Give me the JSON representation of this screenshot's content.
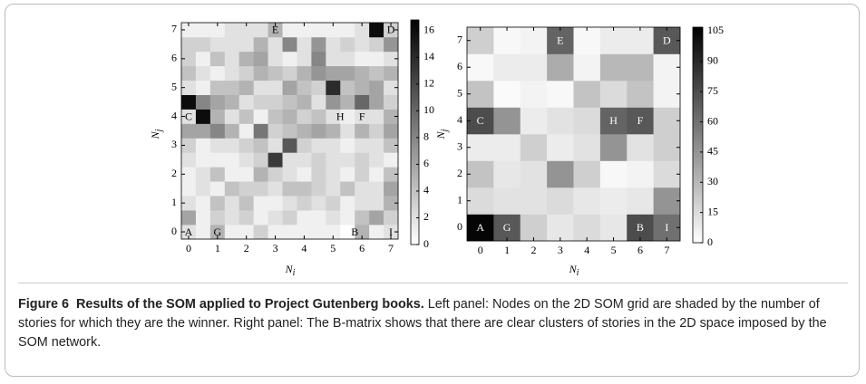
{
  "chart_data": [
    {
      "type": "heatmap",
      "x": [
        0,
        0.5,
        1,
        1.5,
        2,
        2.5,
        3,
        3.5,
        4,
        4.5,
        5,
        5.5,
        6,
        6.5,
        7
      ],
      "y": [
        0,
        0.5,
        1,
        1.5,
        2,
        2.5,
        3,
        3.5,
        4,
        4.5,
        5,
        5.5,
        6,
        6.5,
        7
      ],
      "z": [
        [
          2,
          1,
          5,
          1,
          1,
          3,
          1,
          1,
          1,
          1,
          1,
          0,
          5,
          1,
          2
        ],
        [
          6,
          1,
          3,
          2,
          3,
          1,
          2,
          3,
          1,
          1,
          2,
          1,
          4,
          6,
          3
        ],
        [
          2,
          1,
          4,
          2,
          4,
          1,
          1,
          2,
          3,
          2,
          3,
          1,
          2,
          2,
          5
        ],
        [
          1,
          2,
          1,
          4,
          3,
          3,
          2,
          4,
          4,
          3,
          2,
          4,
          2,
          2,
          6
        ],
        [
          1,
          2,
          4,
          1,
          1,
          5,
          3,
          2,
          1,
          3,
          2,
          1,
          3,
          1,
          4
        ],
        [
          2,
          1,
          1,
          1,
          2,
          3,
          13,
          2,
          2,
          3,
          2,
          2,
          3,
          2,
          1
        ],
        [
          3,
          1,
          2,
          2,
          3,
          4,
          2,
          11,
          3,
          2,
          2,
          1,
          2,
          2,
          4
        ],
        [
          6,
          6,
          8,
          5,
          1,
          9,
          3,
          4,
          5,
          6,
          5,
          2,
          5,
          3,
          6
        ],
        [
          2,
          16,
          5,
          2,
          4,
          1,
          4,
          5,
          3,
          4,
          2,
          1,
          2,
          2,
          5
        ],
        [
          16,
          8,
          6,
          5,
          2,
          3,
          3,
          4,
          5,
          2,
          7,
          5,
          10,
          6,
          3
        ],
        [
          2,
          1,
          4,
          4,
          5,
          2,
          2,
          6,
          4,
          3,
          14,
          4,
          5,
          6,
          2
        ],
        [
          4,
          2,
          1,
          2,
          3,
          5,
          4,
          3,
          5,
          7,
          6,
          6,
          5,
          4,
          5
        ],
        [
          3,
          1,
          4,
          2,
          5,
          6,
          2,
          1,
          2,
          8,
          2,
          2,
          1,
          1,
          2
        ],
        [
          3,
          3,
          2,
          2,
          2,
          5,
          2,
          8,
          2,
          7,
          2,
          3,
          2,
          3,
          7
        ],
        [
          1,
          1,
          1,
          2,
          2,
          2,
          5,
          1,
          1,
          1,
          1,
          1,
          2,
          16,
          3
        ]
      ],
      "xlim": [
        -0.25,
        7.25
      ],
      "ylim": [
        -0.25,
        7.25
      ],
      "xticks": [
        0,
        1,
        2,
        3,
        4,
        5,
        6,
        7
      ],
      "yticks": [
        0,
        1,
        2,
        3,
        4,
        5,
        6,
        7
      ],
      "zlim": [
        0,
        16.8
      ],
      "zticks": [
        0,
        2,
        4,
        6,
        8,
        10,
        12,
        14,
        16
      ],
      "colorscale": [
        "#ffffff",
        "#000000"
      ],
      "xlabel": {
        "base": "N",
        "sub": "i"
      },
      "ylabel": {
        "base": "N",
        "sub": "j"
      },
      "labels": [
        {
          "text": "A",
          "x": 0,
          "y": 0
        },
        {
          "text": "G",
          "x": 1,
          "y": 0
        },
        {
          "text": "B",
          "x": 5.75,
          "y": 0
        },
        {
          "text": "I",
          "x": 7,
          "y": 0
        },
        {
          "text": "C",
          "x": 0,
          "y": 4
        },
        {
          "text": "H",
          "x": 5.25,
          "y": 4
        },
        {
          "text": "F",
          "x": 6,
          "y": 4
        },
        {
          "text": "E",
          "x": 3,
          "y": 7
        },
        {
          "text": "D",
          "x": 7,
          "y": 7
        }
      ]
    },
    {
      "type": "heatmap",
      "x": [
        0,
        1,
        2,
        3,
        4,
        5,
        6,
        7
      ],
      "y": [
        0,
        1,
        2,
        3,
        4,
        5,
        6,
        7
      ],
      "z": [
        [
          105,
          70,
          20,
          10,
          15,
          10,
          75,
          60
        ],
        [
          15,
          12,
          12,
          15,
          10,
          8,
          10,
          45
        ],
        [
          25,
          10,
          12,
          45,
          20,
          3,
          5,
          15
        ],
        [
          8,
          8,
          20,
          8,
          12,
          45,
          12,
          20
        ],
        [
          75,
          45,
          8,
          12,
          15,
          65,
          70,
          20
        ],
        [
          25,
          2,
          5,
          3,
          25,
          15,
          25,
          5
        ],
        [
          3,
          8,
          8,
          35,
          5,
          30,
          30,
          5
        ],
        [
          20,
          3,
          5,
          65,
          3,
          8,
          8,
          70
        ]
      ],
      "xlim": [
        -0.5,
        7.5
      ],
      "ylim": [
        -0.5,
        7.5
      ],
      "xticks": [
        0,
        1,
        2,
        3,
        4,
        5,
        6,
        7
      ],
      "yticks": [
        0,
        1,
        2,
        3,
        4,
        5,
        6,
        7
      ],
      "zlim": [
        0,
        107
      ],
      "zticks": [
        0,
        15,
        30,
        45,
        60,
        75,
        90,
        105
      ],
      "colorscale": [
        "#ffffff",
        "#000000"
      ],
      "xlabel": {
        "base": "N",
        "sub": "i"
      },
      "ylabel": {
        "base": "N",
        "sub": "j"
      },
      "labels": [
        {
          "text": "A",
          "x": 0,
          "y": 0
        },
        {
          "text": "G",
          "x": 1,
          "y": 0
        },
        {
          "text": "B",
          "x": 6,
          "y": 0
        },
        {
          "text": "I",
          "x": 7,
          "y": 0
        },
        {
          "text": "C",
          "x": 0,
          "y": 4
        },
        {
          "text": "H",
          "x": 5,
          "y": 4
        },
        {
          "text": "F",
          "x": 6,
          "y": 4
        },
        {
          "text": "E",
          "x": 3,
          "y": 7
        },
        {
          "text": "D",
          "x": 7,
          "y": 7
        }
      ]
    }
  ],
  "caption": {
    "label": "Figure 6",
    "title": "Results of the SOM applied to Project Gutenberg books.",
    "text": "Left panel: Nodes on the 2D SOM grid are shaded by the number of stories for which they are the winner. Right panel: The B-matrix shows that there are clear clusters of stories in the 2D space imposed by the SOM network."
  }
}
